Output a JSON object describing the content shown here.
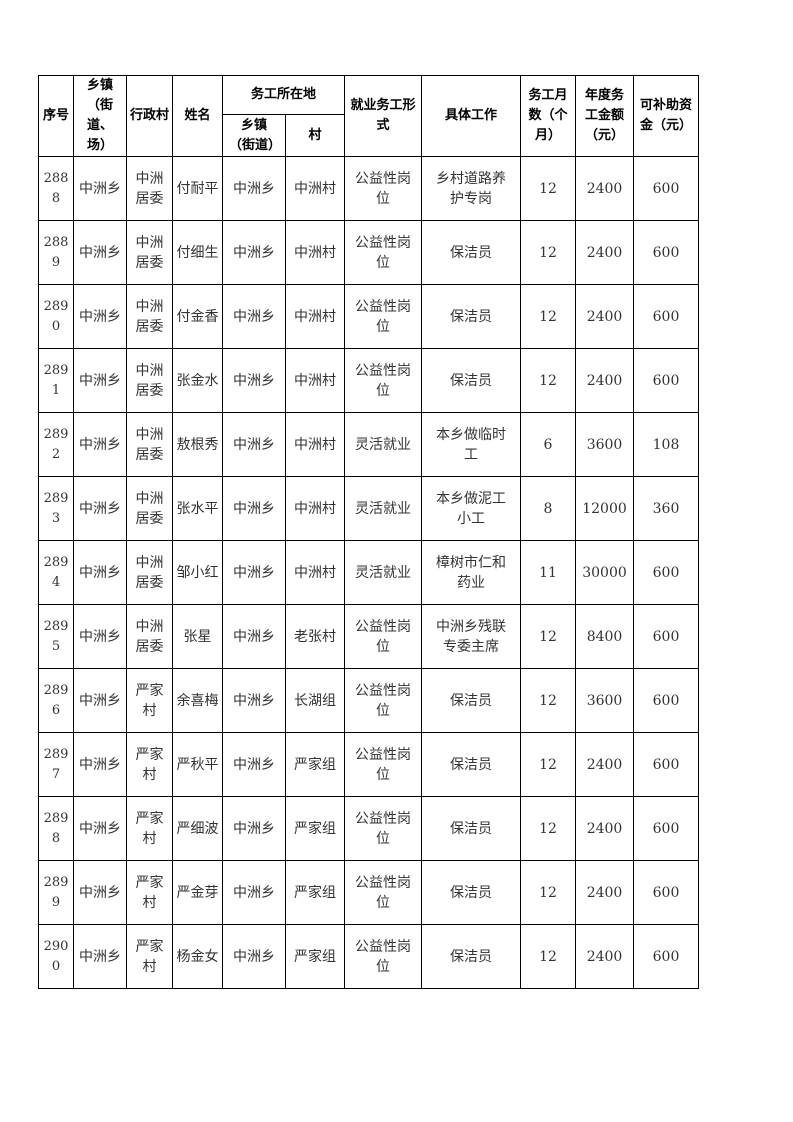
{
  "headers": {
    "seq": "序号",
    "town": "乡镇（街道、场）",
    "admin_village": "行政村",
    "name": "姓名",
    "work_location": "务工所在地",
    "work_town": "乡镇（街道）",
    "work_village": "村",
    "employment_form": "就业务工形式",
    "specific_job": "具体工作",
    "months": "务工月数（个月）",
    "annual_amount": "年度务工金额（元）",
    "subsidy": "可补助资金（元）"
  },
  "rows": [
    [
      "2888",
      "中洲乡",
      "中洲居委",
      "付耐平",
      "中洲乡",
      "中洲村",
      "公益性岗位",
      "乡村道路养护专岗",
      "12",
      "2400",
      "600"
    ],
    [
      "2889",
      "中洲乡",
      "中洲居委",
      "付细生",
      "中洲乡",
      "中洲村",
      "公益性岗位",
      "保洁员",
      "12",
      "2400",
      "600"
    ],
    [
      "2890",
      "中洲乡",
      "中洲居委",
      "付金香",
      "中洲乡",
      "中洲村",
      "公益性岗位",
      "保洁员",
      "12",
      "2400",
      "600"
    ],
    [
      "2891",
      "中洲乡",
      "中洲居委",
      "张金水",
      "中洲乡",
      "中洲村",
      "公益性岗位",
      "保洁员",
      "12",
      "2400",
      "600"
    ],
    [
      "2892",
      "中洲乡",
      "中洲居委",
      "敖根秀",
      "中洲乡",
      "中洲村",
      "灵活就业",
      "本乡做临时工",
      "6",
      "3600",
      "108"
    ],
    [
      "2893",
      "中洲乡",
      "中洲居委",
      "张水平",
      "中洲乡",
      "中洲村",
      "灵活就业",
      "本乡做泥工小工",
      "8",
      "12000",
      "360"
    ],
    [
      "2894",
      "中洲乡",
      "中洲居委",
      "邹小红",
      "中洲乡",
      "中洲村",
      "灵活就业",
      "樟树市仁和药业",
      "11",
      "30000",
      "600"
    ],
    [
      "2895",
      "中洲乡",
      "中洲居委",
      "张星",
      "中洲乡",
      "老张村",
      "公益性岗位",
      "中洲乡残联专委主席",
      "12",
      "8400",
      "600"
    ],
    [
      "2896",
      "中洲乡",
      "严家村",
      "余喜梅",
      "中洲乡",
      "长湖组",
      "公益性岗位",
      "保洁员",
      "12",
      "3600",
      "600"
    ],
    [
      "2897",
      "中洲乡",
      "严家村",
      "严秋平",
      "中洲乡",
      "严家组",
      "公益性岗位",
      "保洁员",
      "12",
      "2400",
      "600"
    ],
    [
      "2898",
      "中洲乡",
      "严家村",
      "严细波",
      "中洲乡",
      "严家组",
      "公益性岗位",
      "保洁员",
      "12",
      "2400",
      "600"
    ],
    [
      "2899",
      "中洲乡",
      "严家村",
      "严金芽",
      "中洲乡",
      "严家组",
      "公益性岗位",
      "保洁员",
      "12",
      "2400",
      "600"
    ],
    [
      "2900",
      "中洲乡",
      "严家村",
      "杨金女",
      "中洲乡",
      "严家组",
      "公益性岗位",
      "保洁员",
      "12",
      "2400",
      "600"
    ]
  ]
}
